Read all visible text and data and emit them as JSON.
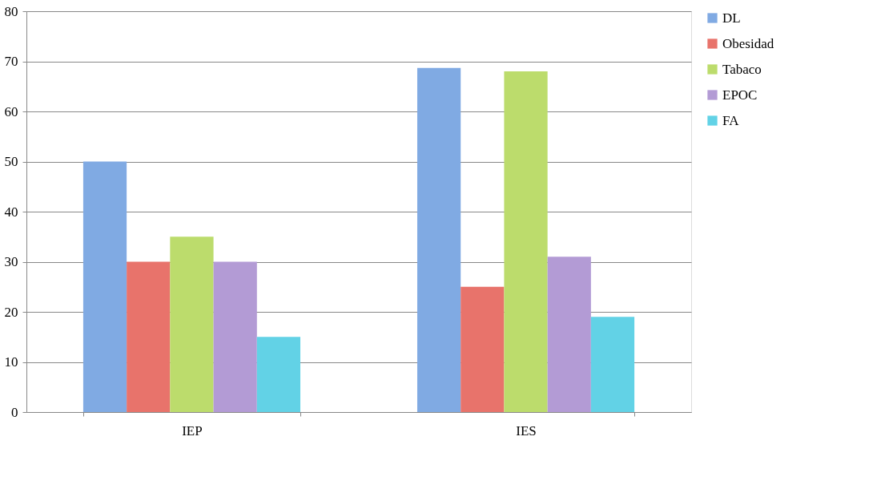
{
  "chart_data": {
    "type": "bar",
    "categories": [
      "IEP",
      "IES"
    ],
    "series": [
      {
        "name": "DL",
        "color": "#80aae3",
        "values": [
          50,
          68.7
        ]
      },
      {
        "name": "Obesidad",
        "color": "#e8736b",
        "values": [
          30,
          25
        ]
      },
      {
        "name": "Tabaco",
        "color": "#bcdc6c",
        "values": [
          35,
          68
        ]
      },
      {
        "name": "EPOC",
        "color": "#b39bd5",
        "values": [
          30,
          31
        ]
      },
      {
        "name": "FA",
        "color": "#62d2e6",
        "values": [
          15,
          19
        ]
      }
    ],
    "ylim": [
      0,
      80
    ],
    "yticks": [
      0,
      10,
      20,
      30,
      40,
      50,
      60,
      70,
      80
    ],
    "grid": "y",
    "legend": "right"
  }
}
